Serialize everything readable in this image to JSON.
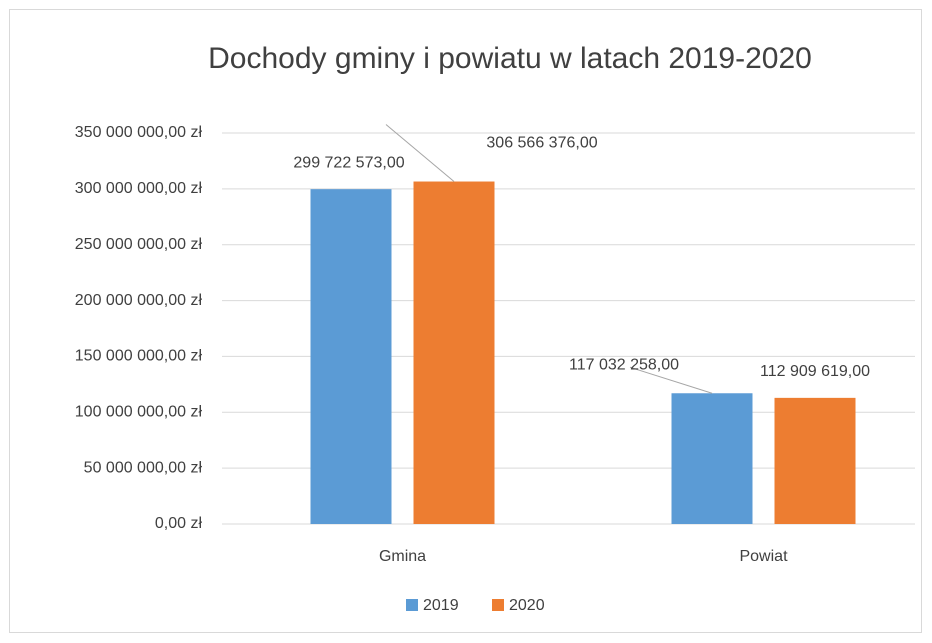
{
  "chart_data": {
    "type": "bar",
    "title": "Dochody gminy i powiatu w latach 2019-2020",
    "categories": [
      "Gmina",
      "Powiat"
    ],
    "series": [
      {
        "name": "2019",
        "color": "#5b9bd5",
        "values": [
          299722573,
          117032258
        ],
        "value_labels": [
          "299 722 573,00",
          "117 032 258,00"
        ]
      },
      {
        "name": "2020",
        "color": "#ed7d31",
        "values": [
          306566376,
          112909619
        ],
        "value_labels": [
          "306 566 376,00",
          "112 909 619,00"
        ]
      }
    ],
    "ylim": [
      0,
      350000000
    ],
    "yticks": [
      {
        "value": 0,
        "label": "0,00 zł"
      },
      {
        "value": 50000000,
        "label": "50 000 000,00 zł"
      },
      {
        "value": 100000000,
        "label": "100 000 000,00 zł"
      },
      {
        "value": 150000000,
        "label": "150 000 000,00 zł"
      },
      {
        "value": 200000000,
        "label": "200 000 000,00 zł"
      },
      {
        "value": 250000000,
        "label": "250 000 000,00 zł"
      },
      {
        "value": 300000000,
        "label": "300 000 000,00 zł"
      },
      {
        "value": 350000000,
        "label": "350 000 000,00 zł"
      }
    ],
    "grid": true,
    "legend": "bottom"
  }
}
